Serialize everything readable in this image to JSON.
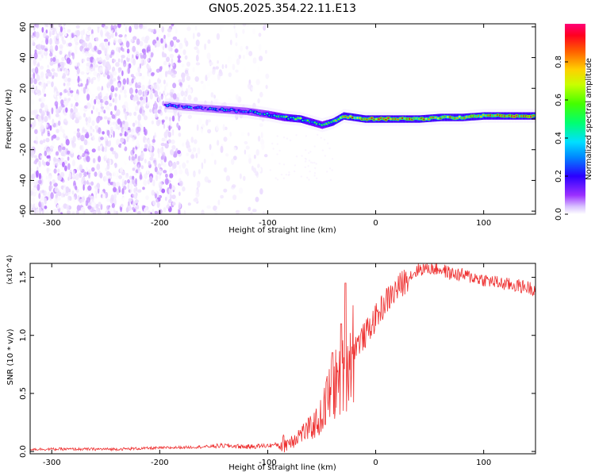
{
  "title": "GN05.2025.354.22.11.E13",
  "chart_data": [
    {
      "type": "heatmap",
      "xlabel": "Height of straight line (km)",
      "ylabel": "Frequency (Hz)",
      "xlim": [
        -320,
        148
      ],
      "ylim": [
        -62,
        62
      ],
      "xticks": [
        -300,
        -200,
        -100,
        0,
        100
      ],
      "yticks": [
        -60,
        -40,
        -20,
        0,
        20,
        40,
        60
      ],
      "grid": false,
      "colorbar": {
        "label": "Normalized spectral amplitude",
        "range": [
          0,
          1
        ],
        "ticks": [
          0.0,
          0.2,
          0.4,
          0.6,
          0.8
        ],
        "colormap": [
          "#ffffff",
          "#e8d6ff",
          "#7b00ff",
          "#0000ff",
          "#00c8ff",
          "#00ff80",
          "#66ff00",
          "#ffff00",
          "#ff8000",
          "#ff0000",
          "#ff0066"
        ]
      },
      "ridge": {
        "x": [
          -195,
          -180,
          -160,
          -140,
          -120,
          -100,
          -85,
          -70,
          -60,
          -50,
          -40,
          -30,
          -20,
          -10,
          0,
          20,
          40,
          60,
          80,
          100,
          120,
          148
        ],
        "freq": [
          9,
          8,
          7,
          6,
          5,
          3,
          1,
          0,
          -2,
          -4,
          -2,
          2,
          1,
          0,
          0,
          0,
          0,
          1,
          1,
          2,
          2,
          2
        ],
        "amplitude": [
          0.3,
          0.35,
          0.35,
          0.4,
          0.4,
          0.45,
          0.55,
          0.6,
          0.55,
          0.5,
          0.65,
          0.75,
          0.8,
          0.85,
          0.85,
          0.85,
          0.85,
          0.8,
          0.82,
          0.85,
          0.9,
          0.95
        ]
      },
      "noise_region": {
        "xmin": -320,
        "xmax": -100,
        "amplitude_range": [
          0.0,
          0.15
        ]
      }
    },
    {
      "type": "line",
      "xlabel": "Height of straight line (km)",
      "ylabel": "SNR (10 * v/v)",
      "y_multiplier": "(x10^4)",
      "xlim": [
        -320,
        148
      ],
      "ylim": [
        -0.02,
        1.62
      ],
      "xticks": [
        -300,
        -200,
        -100,
        0,
        100
      ],
      "yticks": [
        0.0,
        0.5,
        1.0,
        1.5
      ],
      "grid": false,
      "series": [
        {
          "color": "#ee3030",
          "x": [
            -320,
            -280,
            -240,
            -200,
            -160,
            -140,
            -120,
            -100,
            -90,
            -80,
            -70,
            -60,
            -50,
            -45,
            -40,
            -35,
            -30,
            -25,
            -20,
            -10,
            0,
            10,
            20,
            30,
            40,
            50,
            60,
            70,
            80,
            90,
            100,
            110,
            120,
            130,
            148
          ],
          "y": [
            0.02,
            0.02,
            0.02,
            0.03,
            0.04,
            0.05,
            0.04,
            0.05,
            0.06,
            0.08,
            0.15,
            0.2,
            0.3,
            0.45,
            0.55,
            0.6,
            0.7,
            0.8,
            0.9,
            1.0,
            1.15,
            1.3,
            1.4,
            1.5,
            1.57,
            1.58,
            1.57,
            1.53,
            1.52,
            1.5,
            1.48,
            1.46,
            1.44,
            1.43,
            1.4
          ],
          "peaks": [
            {
              "x": -28,
              "y": 1.45
            },
            {
              "x": -32,
              "y": 1.1
            },
            {
              "x": -40,
              "y": 0.85
            }
          ]
        }
      ]
    }
  ]
}
